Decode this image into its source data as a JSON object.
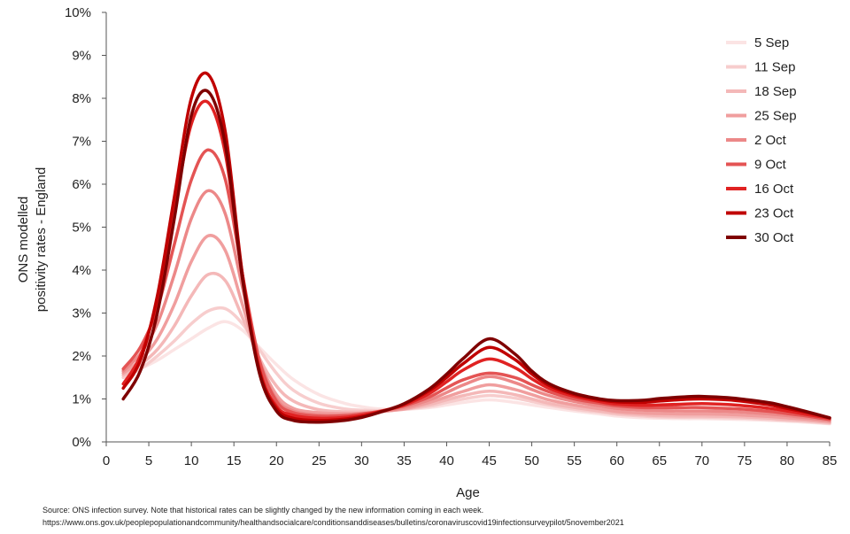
{
  "chart_data": {
    "type": "line",
    "xlabel": "Age",
    "ylabel_lines": [
      "ONS modelled",
      "positivity rates - England"
    ],
    "xlim": [
      0,
      85
    ],
    "ylim": [
      0,
      10
    ],
    "x_ticks": [
      0,
      5,
      10,
      15,
      20,
      25,
      30,
      35,
      40,
      45,
      50,
      55,
      60,
      65,
      70,
      75,
      80,
      85
    ],
    "y_ticks": [
      "0%",
      "1%",
      "2%",
      "3%",
      "4%",
      "5%",
      "6%",
      "7%",
      "8%",
      "9%",
      "10%"
    ],
    "grid": false,
    "legend_position": "top-right",
    "x": [
      2,
      4,
      6,
      8,
      10,
      12,
      14,
      16,
      18,
      20,
      22,
      25,
      28,
      30,
      32,
      35,
      38,
      40,
      42,
      45,
      48,
      50,
      52,
      55,
      58,
      60,
      63,
      65,
      68,
      70,
      73,
      75,
      78,
      80,
      82,
      85
    ],
    "series": [
      {
        "name": "5 Sep",
        "color": "#fbe4e4",
        "values": [
          1.5,
          1.7,
          1.9,
          2.15,
          2.4,
          2.65,
          2.8,
          2.6,
          2.2,
          1.8,
          1.45,
          1.1,
          0.9,
          0.82,
          0.77,
          0.76,
          0.8,
          0.86,
          0.92,
          0.98,
          0.92,
          0.86,
          0.8,
          0.72,
          0.65,
          0.6,
          0.56,
          0.55,
          0.54,
          0.54,
          0.53,
          0.52,
          0.5,
          0.48,
          0.46,
          0.42
        ]
      },
      {
        "name": "11 Sep",
        "color": "#f7cdcd",
        "values": [
          1.5,
          1.7,
          2.0,
          2.35,
          2.75,
          3.05,
          3.1,
          2.75,
          2.15,
          1.6,
          1.2,
          0.9,
          0.77,
          0.74,
          0.73,
          0.76,
          0.83,
          0.92,
          1.0,
          1.08,
          1.02,
          0.94,
          0.86,
          0.76,
          0.69,
          0.64,
          0.6,
          0.58,
          0.57,
          0.57,
          0.56,
          0.55,
          0.52,
          0.5,
          0.48,
          0.43
        ]
      },
      {
        "name": "18 Sep",
        "color": "#f4b8b8",
        "values": [
          1.55,
          1.8,
          2.15,
          2.7,
          3.4,
          3.9,
          3.75,
          2.9,
          1.95,
          1.3,
          0.95,
          0.75,
          0.7,
          0.7,
          0.71,
          0.76,
          0.87,
          0.98,
          1.08,
          1.18,
          1.1,
          1.0,
          0.9,
          0.8,
          0.72,
          0.67,
          0.63,
          0.61,
          0.6,
          0.6,
          0.59,
          0.58,
          0.55,
          0.52,
          0.5,
          0.45
        ]
      },
      {
        "name": "25 Sep",
        "color": "#f09e9e",
        "values": [
          1.6,
          1.9,
          2.4,
          3.2,
          4.2,
          4.8,
          4.45,
          3.2,
          1.9,
          1.1,
          0.78,
          0.68,
          0.66,
          0.67,
          0.7,
          0.77,
          0.92,
          1.05,
          1.18,
          1.33,
          1.22,
          1.1,
          0.98,
          0.86,
          0.77,
          0.71,
          0.67,
          0.66,
          0.65,
          0.65,
          0.64,
          0.62,
          0.59,
          0.56,
          0.53,
          0.47
        ]
      },
      {
        "name": "2 Oct",
        "color": "#ec8888",
        "values": [
          1.65,
          2.05,
          2.75,
          3.9,
          5.2,
          5.85,
          5.3,
          3.6,
          1.9,
          1.0,
          0.72,
          0.63,
          0.63,
          0.66,
          0.7,
          0.8,
          0.98,
          1.15,
          1.33,
          1.52,
          1.38,
          1.22,
          1.08,
          0.94,
          0.84,
          0.78,
          0.74,
          0.73,
          0.72,
          0.72,
          0.71,
          0.69,
          0.65,
          0.61,
          0.57,
          0.5
        ]
      },
      {
        "name": "9 Oct",
        "color": "#e45454",
        "values": [
          1.7,
          2.2,
          3.1,
          4.6,
          6.1,
          6.8,
          6.1,
          3.9,
          1.9,
          0.95,
          0.68,
          0.6,
          0.61,
          0.65,
          0.71,
          0.84,
          1.05,
          1.26,
          1.45,
          1.6,
          1.5,
          1.33,
          1.17,
          1.0,
          0.9,
          0.84,
          0.8,
          0.8,
          0.8,
          0.8,
          0.78,
          0.76,
          0.71,
          0.66,
          0.61,
          0.52
        ]
      },
      {
        "name": "16 Oct",
        "color": "#e02222",
        "values": [
          1.35,
          2.0,
          3.3,
          5.4,
          7.4,
          7.9,
          6.7,
          3.9,
          1.7,
          0.83,
          0.62,
          0.55,
          0.57,
          0.62,
          0.7,
          0.86,
          1.13,
          1.4,
          1.68,
          1.93,
          1.73,
          1.47,
          1.25,
          1.06,
          0.94,
          0.88,
          0.85,
          0.86,
          0.88,
          0.89,
          0.87,
          0.84,
          0.78,
          0.72,
          0.65,
          0.55
        ]
      },
      {
        "name": "23 Oct",
        "color": "#c00000",
        "values": [
          1.25,
          1.9,
          3.4,
          5.7,
          8.0,
          8.55,
          7.2,
          3.9,
          1.65,
          0.78,
          0.55,
          0.5,
          0.53,
          0.59,
          0.69,
          0.88,
          1.2,
          1.5,
          1.83,
          2.2,
          1.92,
          1.58,
          1.32,
          1.1,
          0.98,
          0.93,
          0.92,
          0.95,
          0.99,
          1.0,
          0.98,
          0.94,
          0.86,
          0.78,
          0.7,
          0.56
        ]
      },
      {
        "name": "30 Oct",
        "color": "#7f0000",
        "values": [
          1.0,
          1.65,
          3.0,
          5.2,
          7.6,
          8.15,
          6.9,
          3.8,
          1.6,
          0.72,
          0.5,
          0.46,
          0.5,
          0.57,
          0.68,
          0.89,
          1.24,
          1.58,
          1.95,
          2.4,
          2.05,
          1.65,
          1.36,
          1.13,
          1.0,
          0.96,
          0.97,
          1.01,
          1.05,
          1.06,
          1.03,
          0.99,
          0.91,
          0.82,
          0.72,
          0.56
        ]
      }
    ]
  },
  "source": {
    "line1": "Source: ONS infection survey. Note that historical rates can be slightly changed by the new information coming in each week.",
    "line2": "https://www.ons.gov.uk/peoplepopulationandcommunity/healthandsocialcare/conditionsanddiseases/bulletins/coronaviruscovid19infectionsurveypilot/5november2021"
  }
}
